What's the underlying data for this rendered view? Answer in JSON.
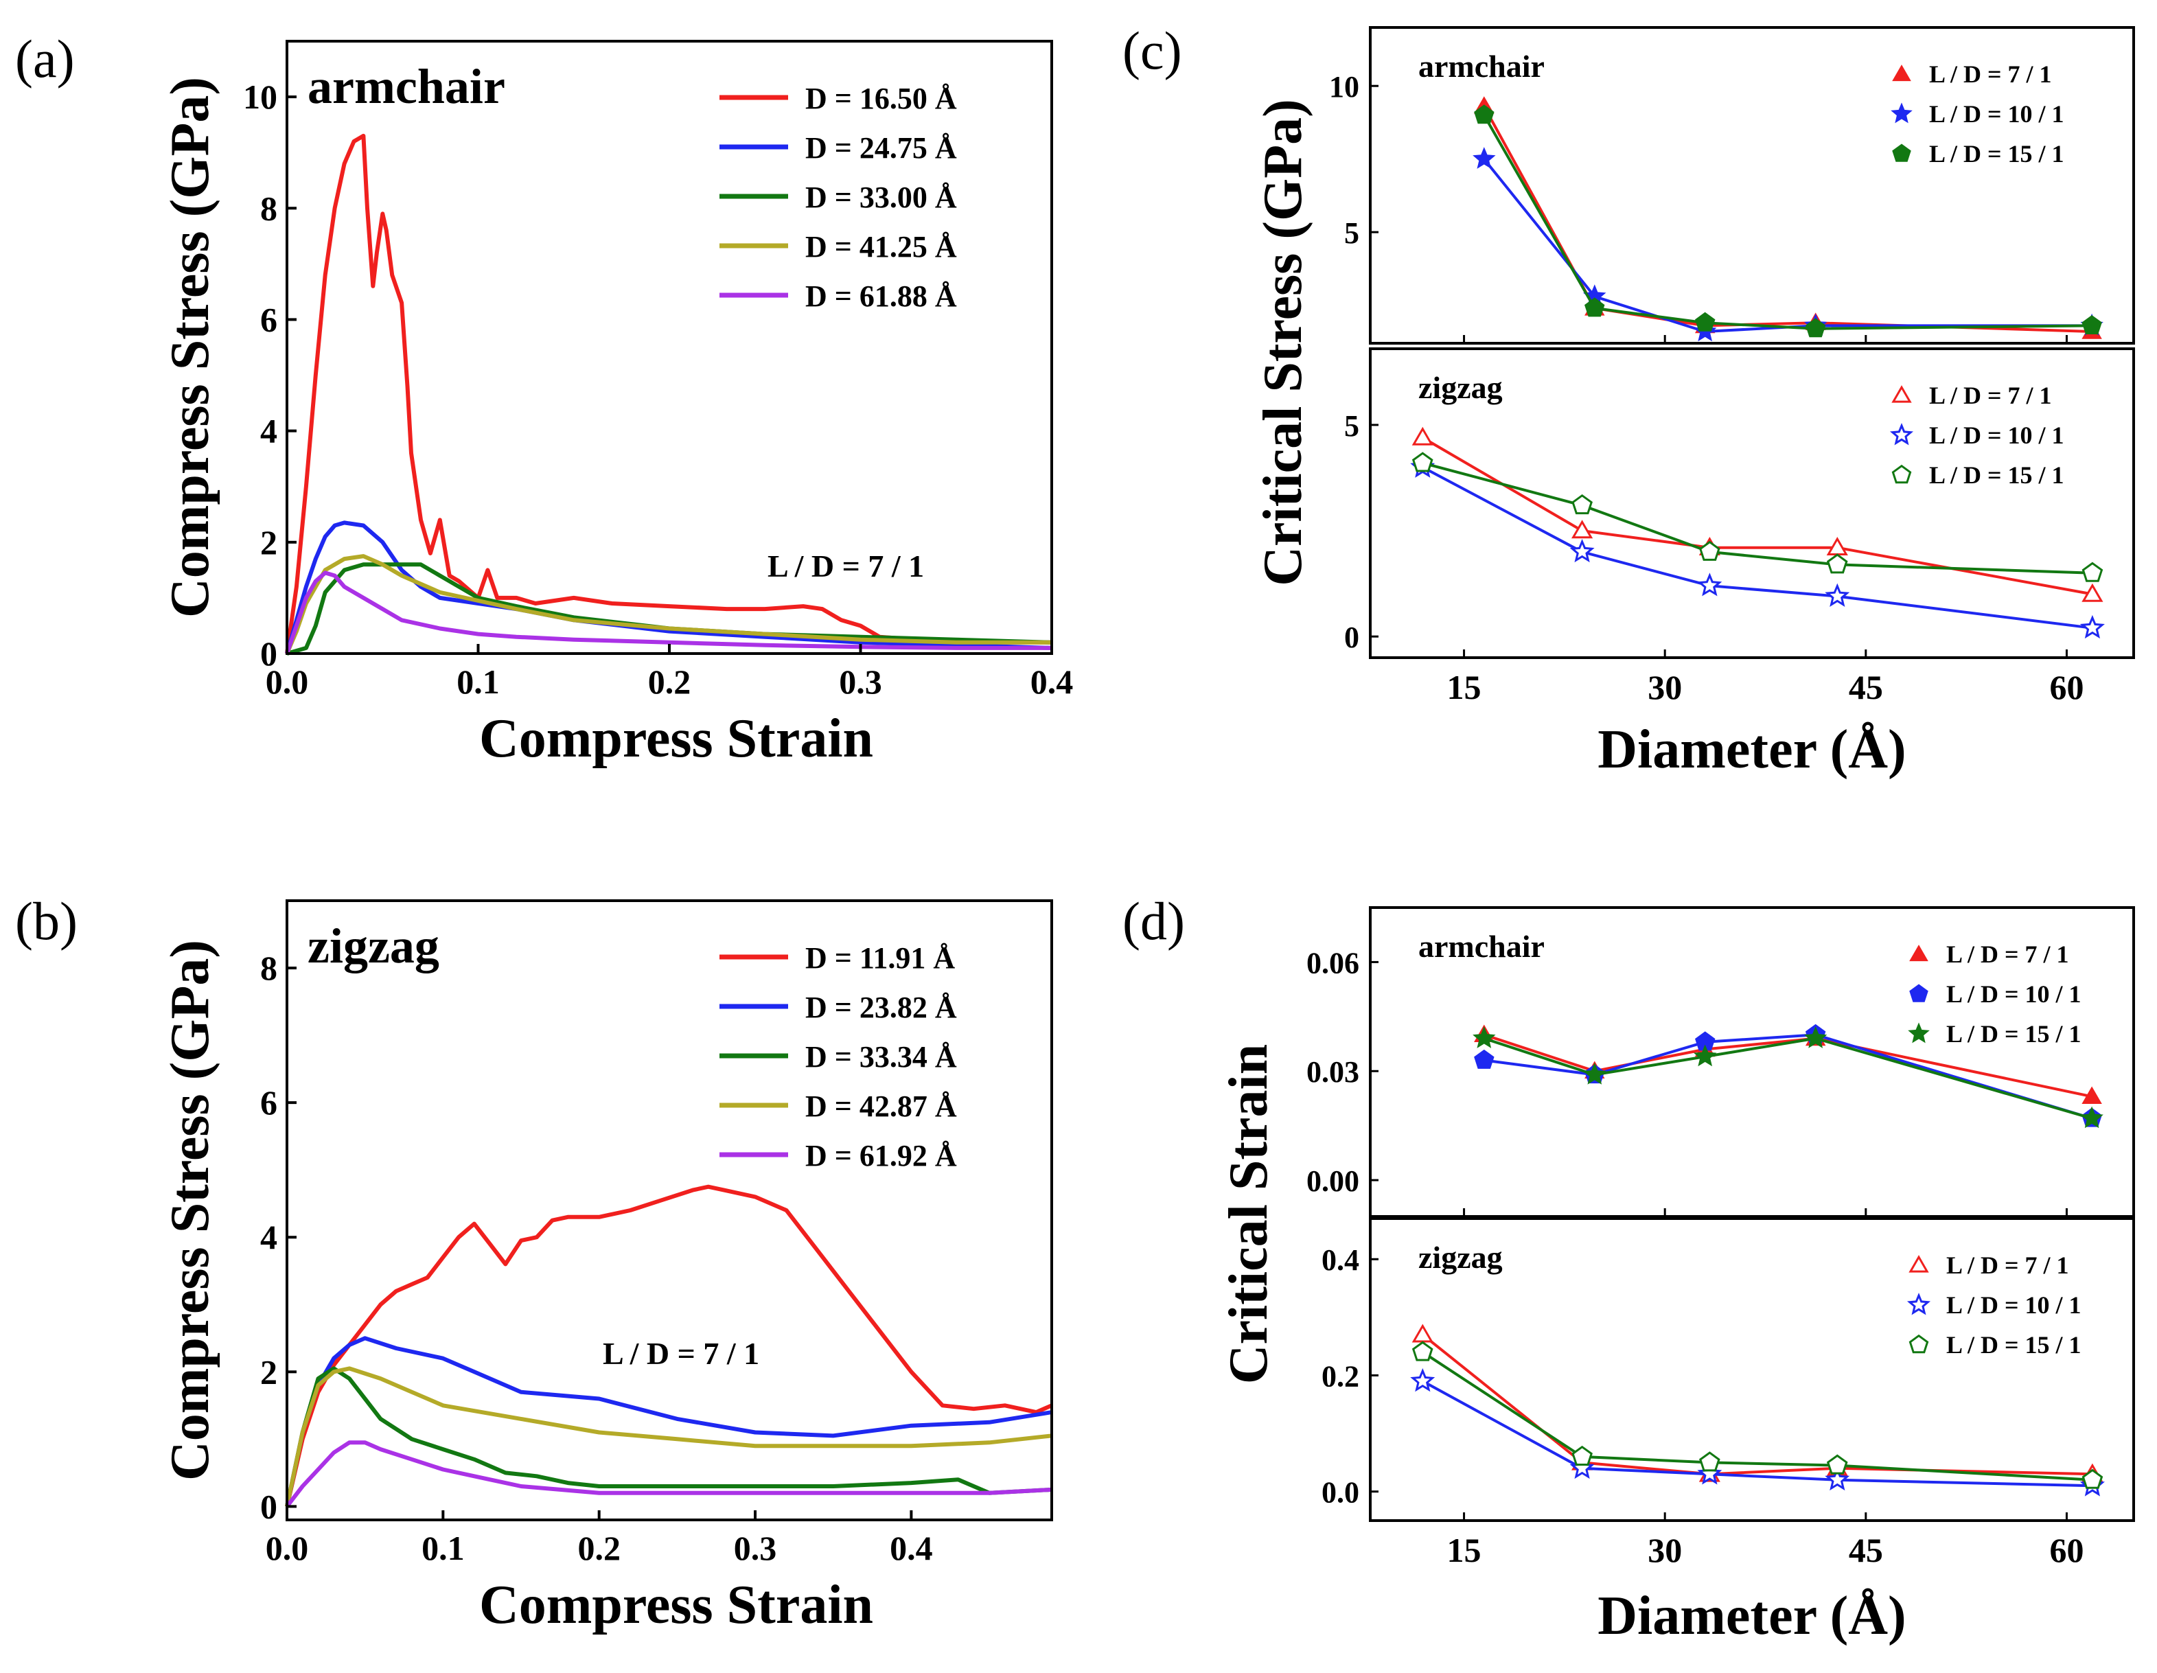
{
  "colors": {
    "red": "#f0201e",
    "blue": "#1e28f0",
    "green": "#127812",
    "olive": "#b4aa28",
    "purple": "#aa32e6"
  },
  "chart_data": [
    {
      "id": "a",
      "type": "line",
      "panel_label": "(a)",
      "annotation": "armchair",
      "annotation2": "L / D = 7 / 1",
      "xlabel": "Compress Strain",
      "ylabel": "Compress Stress (GPa)",
      "xlim": [
        0,
        0.4
      ],
      "ylim": [
        0,
        11
      ],
      "xticks": [
        0.0,
        0.1,
        0.2,
        0.3,
        0.4
      ],
      "xtick_labels": [
        "0.0",
        "0.1",
        "0.2",
        "0.3",
        "0.4"
      ],
      "yticks": [
        0,
        2,
        4,
        6,
        8,
        10
      ],
      "ytick_labels": [
        "0",
        "2",
        "4",
        "6",
        "8",
        "10"
      ],
      "legend_position": "top-right",
      "series": [
        {
          "name": "D = 16.50 Å",
          "color": "red",
          "x": [
            0,
            0.005,
            0.01,
            0.015,
            0.02,
            0.025,
            0.03,
            0.035,
            0.04,
            0.042,
            0.045,
            0.047,
            0.05,
            0.052,
            0.055,
            0.06,
            0.063,
            0.065,
            0.07,
            0.075,
            0.08,
            0.085,
            0.09,
            0.1,
            0.105,
            0.11,
            0.12,
            0.13,
            0.15,
            0.17,
            0.2,
            0.23,
            0.25,
            0.27,
            0.28,
            0.29,
            0.3,
            0.31,
            0.33,
            0.35,
            0.38,
            0.4
          ],
          "y": [
            0,
            1.2,
            3.0,
            5.0,
            6.8,
            8.0,
            8.8,
            9.2,
            9.3,
            8.0,
            6.6,
            7.2,
            7.9,
            7.6,
            6.8,
            6.3,
            4.8,
            3.6,
            2.4,
            1.8,
            2.4,
            1.4,
            1.3,
            1.0,
            1.5,
            1.0,
            1.0,
            0.9,
            1.0,
            0.9,
            0.85,
            0.8,
            0.8,
            0.85,
            0.8,
            0.6,
            0.5,
            0.3,
            0.25,
            0.2,
            0.2,
            0.2
          ]
        },
        {
          "name": "D = 24.75 Å",
          "color": "blue",
          "x": [
            0,
            0.005,
            0.01,
            0.015,
            0.02,
            0.025,
            0.03,
            0.04,
            0.05,
            0.06,
            0.07,
            0.08,
            0.1,
            0.12,
            0.15,
            0.2,
            0.25,
            0.3,
            0.35,
            0.4
          ],
          "y": [
            0,
            0.6,
            1.2,
            1.7,
            2.1,
            2.3,
            2.35,
            2.3,
            2.0,
            1.5,
            1.2,
            1.0,
            0.9,
            0.8,
            0.6,
            0.4,
            0.3,
            0.2,
            0.15,
            0.1
          ]
        },
        {
          "name": "D = 33.00 Å",
          "color": "green",
          "x": [
            0,
            0.01,
            0.015,
            0.02,
            0.03,
            0.04,
            0.05,
            0.06,
            0.07,
            0.08,
            0.09,
            0.1,
            0.12,
            0.15,
            0.2,
            0.25,
            0.3,
            0.35,
            0.4
          ],
          "y": [
            0,
            0.1,
            0.5,
            1.1,
            1.5,
            1.6,
            1.6,
            1.6,
            1.6,
            1.4,
            1.2,
            1.0,
            0.85,
            0.65,
            0.45,
            0.35,
            0.3,
            0.25,
            0.2
          ]
        },
        {
          "name": "D = 41.25 Å",
          "color": "olive",
          "x": [
            0,
            0.005,
            0.01,
            0.02,
            0.03,
            0.04,
            0.05,
            0.06,
            0.08,
            0.1,
            0.12,
            0.15,
            0.2,
            0.25,
            0.3,
            0.35,
            0.4
          ],
          "y": [
            0,
            0.4,
            0.9,
            1.5,
            1.7,
            1.75,
            1.6,
            1.4,
            1.1,
            0.95,
            0.8,
            0.6,
            0.45,
            0.35,
            0.25,
            0.2,
            0.2
          ]
        },
        {
          "name": "D = 61.88 Å",
          "color": "purple",
          "x": [
            0,
            0.005,
            0.01,
            0.015,
            0.02,
            0.025,
            0.03,
            0.04,
            0.05,
            0.06,
            0.08,
            0.1,
            0.12,
            0.15,
            0.2,
            0.25,
            0.3,
            0.35,
            0.4
          ],
          "y": [
            0,
            0.5,
            1.0,
            1.3,
            1.45,
            1.4,
            1.2,
            1.0,
            0.8,
            0.6,
            0.45,
            0.35,
            0.3,
            0.25,
            0.2,
            0.15,
            0.12,
            0.1,
            0.1
          ]
        }
      ]
    },
    {
      "id": "b",
      "type": "line",
      "panel_label": "(b)",
      "annotation": "zigzag",
      "annotation2": "L / D = 7 / 1",
      "xlabel": "Compress Strain",
      "ylabel": "Compress Stress (GPa)",
      "xlim": [
        0,
        0.49
      ],
      "ylim": [
        -0.2,
        9
      ],
      "xticks": [
        0.0,
        0.1,
        0.2,
        0.3,
        0.4
      ],
      "xtick_labels": [
        "0.0",
        "0.1",
        "0.2",
        "0.3",
        "0.4"
      ],
      "yticks": [
        0,
        2,
        4,
        6,
        8
      ],
      "ytick_labels": [
        "0",
        "2",
        "4",
        "6",
        "8"
      ],
      "legend_position": "top-right",
      "series": [
        {
          "name": "D = 11.91 Å",
          "color": "red",
          "x": [
            0,
            0.01,
            0.02,
            0.03,
            0.04,
            0.05,
            0.06,
            0.07,
            0.08,
            0.09,
            0.1,
            0.11,
            0.12,
            0.13,
            0.14,
            0.15,
            0.16,
            0.17,
            0.18,
            0.2,
            0.22,
            0.24,
            0.26,
            0.27,
            0.28,
            0.3,
            0.32,
            0.34,
            0.36,
            0.38,
            0.4,
            0.42,
            0.44,
            0.46,
            0.48,
            0.49
          ],
          "y": [
            0,
            1.0,
            1.7,
            2.1,
            2.4,
            2.7,
            3.0,
            3.2,
            3.3,
            3.4,
            3.7,
            4.0,
            4.2,
            3.9,
            3.6,
            3.95,
            4.0,
            4.25,
            4.3,
            4.3,
            4.4,
            4.55,
            4.7,
            4.75,
            4.7,
            4.6,
            4.4,
            3.8,
            3.2,
            2.6,
            2.0,
            1.5,
            1.45,
            1.5,
            1.4,
            1.5
          ]
        },
        {
          "name": "D = 23.82 Å",
          "color": "blue",
          "x": [
            0,
            0.01,
            0.02,
            0.03,
            0.04,
            0.05,
            0.07,
            0.1,
            0.12,
            0.15,
            0.2,
            0.25,
            0.3,
            0.35,
            0.4,
            0.45,
            0.49
          ],
          "y": [
            0,
            1.1,
            1.8,
            2.2,
            2.4,
            2.5,
            2.35,
            2.2,
            2.0,
            1.7,
            1.6,
            1.3,
            1.1,
            1.05,
            1.2,
            1.25,
            1.4
          ]
        },
        {
          "name": "D = 33.34 Å",
          "color": "green",
          "x": [
            0,
            0.01,
            0.02,
            0.03,
            0.04,
            0.05,
            0.06,
            0.08,
            0.1,
            0.12,
            0.14,
            0.16,
            0.18,
            0.2,
            0.25,
            0.3,
            0.35,
            0.4,
            0.43,
            0.45,
            0.49
          ],
          "y": [
            0,
            1.1,
            1.9,
            2.05,
            1.9,
            1.6,
            1.3,
            1.0,
            0.85,
            0.7,
            0.5,
            0.45,
            0.35,
            0.3,
            0.3,
            0.3,
            0.3,
            0.35,
            0.4,
            0.2,
            0.25
          ]
        },
        {
          "name": "D = 42.87 Å",
          "color": "olive",
          "x": [
            0,
            0.01,
            0.02,
            0.03,
            0.04,
            0.06,
            0.08,
            0.1,
            0.15,
            0.2,
            0.25,
            0.3,
            0.35,
            0.4,
            0.45,
            0.49
          ],
          "y": [
            0,
            1.1,
            1.8,
            2.0,
            2.05,
            1.9,
            1.7,
            1.5,
            1.3,
            1.1,
            1.0,
            0.9,
            0.9,
            0.9,
            0.95,
            1.05
          ]
        },
        {
          "name": "D = 61.92 Å",
          "color": "purple",
          "x": [
            0,
            0.01,
            0.02,
            0.03,
            0.04,
            0.05,
            0.06,
            0.08,
            0.1,
            0.12,
            0.15,
            0.2,
            0.25,
            0.3,
            0.35,
            0.4,
            0.45,
            0.49
          ],
          "y": [
            0,
            0.3,
            0.55,
            0.8,
            0.95,
            0.95,
            0.85,
            0.7,
            0.55,
            0.45,
            0.3,
            0.2,
            0.2,
            0.2,
            0.2,
            0.2,
            0.2,
            0.25
          ]
        }
      ]
    },
    {
      "id": "c",
      "type": "line",
      "panel_label": "(c)",
      "xlabel": "Diameter (Å)",
      "ylabel": "Critical Stress (GPa)",
      "xlim": [
        8,
        65
      ],
      "xticks": [
        15,
        30,
        45,
        60
      ],
      "xtick_labels": [
        "15",
        "30",
        "45",
        "60"
      ],
      "subplots": [
        {
          "annotation": "armchair",
          "ylim": [
            1.2,
            12
          ],
          "yticks": [
            5,
            10
          ],
          "ytick_labels": [
            "5",
            "10"
          ],
          "series": [
            {
              "name": "L / D = 7 / 1",
              "color": "red",
              "marker": "triangle",
              "filled": true,
              "x": [
                16.5,
                24.75,
                33.0,
                41.25,
                61.88
              ],
              "y": [
                9.3,
                2.4,
                1.8,
                1.9,
                1.6
              ]
            },
            {
              "name": "L / D = 10 / 1",
              "color": "blue",
              "marker": "star",
              "filled": true,
              "x": [
                16.5,
                24.75,
                33.0,
                41.25,
                61.88
              ],
              "y": [
                7.5,
                2.8,
                1.6,
                1.8,
                1.8
              ]
            },
            {
              "name": "L / D = 15 / 1",
              "color": "green",
              "marker": "pentagon",
              "filled": true,
              "x": [
                16.5,
                24.75,
                33.0,
                41.25,
                61.88
              ],
              "y": [
                9.0,
                2.4,
                1.9,
                1.7,
                1.8
              ]
            }
          ]
        },
        {
          "annotation": "zigzag",
          "ylim": [
            -0.5,
            6.8
          ],
          "yticks": [
            0,
            5
          ],
          "ytick_labels": [
            "0",
            "5"
          ],
          "series": [
            {
              "name": "L / D = 7 / 1",
              "color": "red",
              "marker": "triangle",
              "filled": false,
              "x": [
                11.91,
                23.82,
                33.34,
                42.87,
                61.92
              ],
              "y": [
                4.7,
                2.5,
                2.1,
                2.1,
                1.0
              ]
            },
            {
              "name": "L / D = 10 / 1",
              "color": "blue",
              "marker": "star",
              "filled": false,
              "x": [
                11.91,
                23.82,
                33.34,
                42.87,
                61.92
              ],
              "y": [
                4.0,
                2.0,
                1.2,
                0.95,
                0.2
              ]
            },
            {
              "name": "L / D = 15 / 1",
              "color": "green",
              "marker": "pentagon",
              "filled": false,
              "x": [
                11.91,
                23.82,
                33.34,
                42.87,
                61.92
              ],
              "y": [
                4.1,
                3.1,
                2.0,
                1.7,
                1.5
              ]
            }
          ]
        }
      ]
    },
    {
      "id": "d",
      "type": "line",
      "panel_label": "(d)",
      "xlabel": "Diameter (Å)",
      "ylabel": "Critical Strain",
      "xlim": [
        8,
        65
      ],
      "xticks": [
        15,
        30,
        45,
        60
      ],
      "xtick_labels": [
        "15",
        "30",
        "45",
        "60"
      ],
      "subplots": [
        {
          "annotation": "armchair",
          "ylim": [
            -0.01,
            0.075
          ],
          "yticks": [
            0.0,
            0.03,
            0.06
          ],
          "ytick_labels": [
            "0.00",
            "0.03",
            "0.06"
          ],
          "series": [
            {
              "name": "L / D = 7 / 1",
              "color": "red",
              "marker": "triangle",
              "filled": true,
              "x": [
                16.5,
                24.75,
                33.0,
                41.25,
                61.88
              ],
              "y": [
                0.04,
                0.03,
                0.036,
                0.039,
                0.023
              ]
            },
            {
              "name": "L / D = 10 / 1",
              "color": "blue",
              "marker": "pentagon",
              "filled": true,
              "x": [
                16.5,
                24.75,
                33.0,
                41.25,
                61.88
              ],
              "y": [
                0.033,
                0.029,
                0.038,
                0.04,
                0.017
              ]
            },
            {
              "name": "L / D = 15 / 1",
              "color": "green",
              "marker": "star",
              "filled": true,
              "x": [
                16.5,
                24.75,
                33.0,
                41.25,
                61.88
              ],
              "y": [
                0.039,
                0.029,
                0.034,
                0.039,
                0.017
              ]
            }
          ]
        },
        {
          "annotation": "zigzag",
          "ylim": [
            -0.05,
            0.47
          ],
          "yticks": [
            0.0,
            0.2,
            0.4
          ],
          "ytick_labels": [
            "0.0",
            "0.2",
            "0.4"
          ],
          "series": [
            {
              "name": "L / D = 7 / 1",
              "color": "red",
              "marker": "triangle",
              "filled": false,
              "x": [
                11.91,
                23.82,
                33.34,
                42.87,
                61.92
              ],
              "y": [
                0.27,
                0.05,
                0.03,
                0.04,
                0.03
              ]
            },
            {
              "name": "L / D = 10 / 1",
              "color": "blue",
              "marker": "star",
              "filled": false,
              "x": [
                11.91,
                23.82,
                33.34,
                42.87,
                61.92
              ],
              "y": [
                0.19,
                0.04,
                0.03,
                0.02,
                0.01
              ]
            },
            {
              "name": "L / D = 15 / 1",
              "color": "green",
              "marker": "pentagon",
              "filled": false,
              "x": [
                11.91,
                23.82,
                33.34,
                42.87,
                61.92
              ],
              "y": [
                0.24,
                0.06,
                0.05,
                0.045,
                0.02
              ]
            }
          ]
        }
      ]
    }
  ]
}
